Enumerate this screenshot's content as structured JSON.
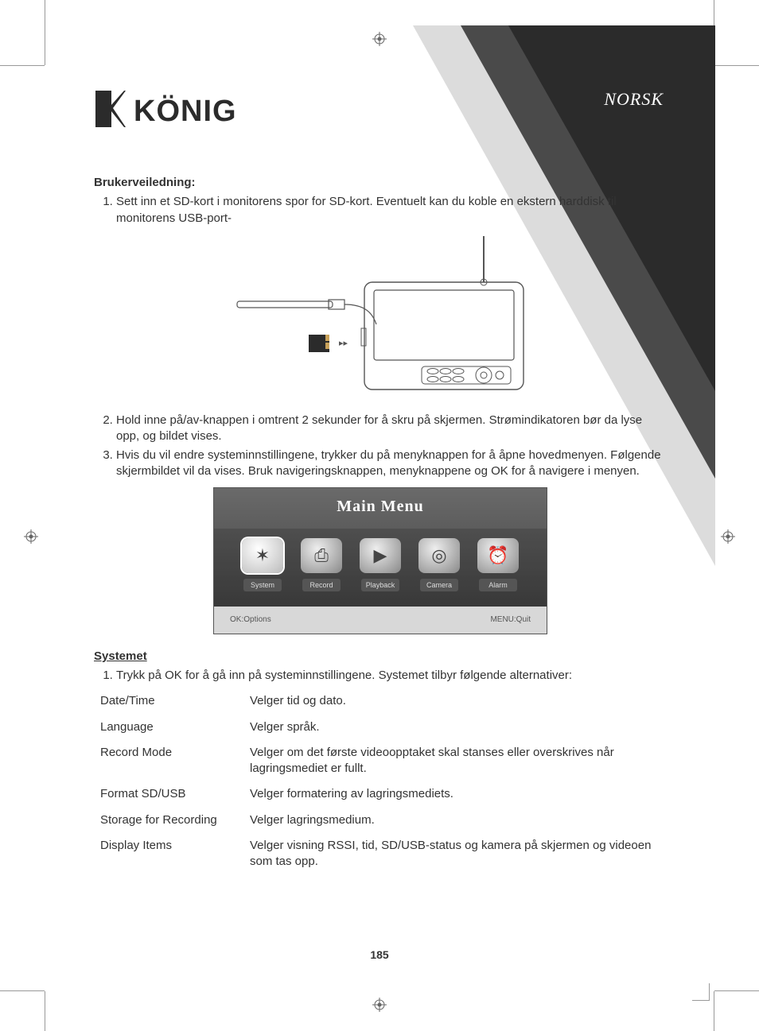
{
  "language_label": "NORSK",
  "logo_text": "KÖNIG",
  "section_user_guide_title": "Brukerveiledning:",
  "steps_a": [
    "Sett inn et SD-kort i monitorens spor for SD-kort. Eventuelt kan du koble en ekstern harddisk til monitorens USB-port-",
    "Hold inne på/av-knappen i omtrent 2 sekunder for å skru på skjermen. Strømindikatoren bør da lyse opp, og bildet vises.",
    "Hvis du vil endre systeminnstillingene, trykker du på menyknappen for å åpne hovedmenyen. Følgende skjermbildet vil da vises. Bruk navigeringsknappen, menyknappene og OK for å navigere i menyen."
  ],
  "main_menu": {
    "title": "Main Menu",
    "items": [
      {
        "label": "System",
        "glyph": "✶",
        "selected": true
      },
      {
        "label": "Record",
        "glyph": "⎙",
        "selected": false
      },
      {
        "label": "Playback",
        "glyph": "▶",
        "selected": false
      },
      {
        "label": "Camera",
        "glyph": "◎",
        "selected": false
      },
      {
        "label": "Alarm",
        "glyph": "⏰",
        "selected": false
      }
    ],
    "footer_left": "OK:Options",
    "footer_right": "MENU:Quit"
  },
  "section_system_title": "Systemet",
  "steps_b": [
    "Trykk på OK for å gå inn på systeminnstillingene. Systemet tilbyr følgende alternativer:"
  ],
  "options": [
    {
      "key": "Date/Time",
      "val": "Velger tid og dato."
    },
    {
      "key": "Language",
      "val": "Velger språk."
    },
    {
      "key": "Record Mode",
      "val": "Velger om det første videoopptaket skal stanses eller overskrives når lagringsmediet er fullt."
    },
    {
      "key": "Format SD/USB",
      "val": "Velger formatering av lagringsmediets."
    },
    {
      "key": "Storage for Recording",
      "val": "Velger lagringsmedium."
    },
    {
      "key": "Display Items",
      "val": "Velger visning RSSI, tid, SD/USB-status og kamera på skjermen og videoen som tas opp."
    }
  ],
  "page_number": "185"
}
